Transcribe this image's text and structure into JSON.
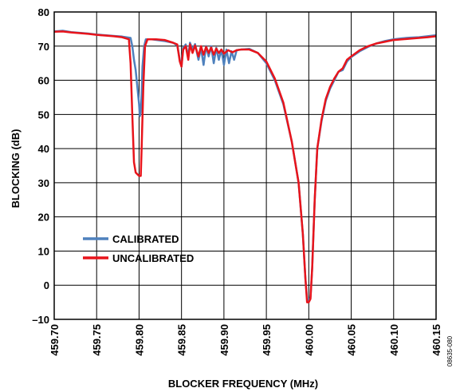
{
  "chart_data": {
    "type": "line",
    "title": "",
    "xlabel": "BLOCKER FREQUENCY (MHz)",
    "ylabel": "BLOCKING (dB)",
    "xlim": [
      459.7,
      460.15
    ],
    "ylim": [
      -10,
      80
    ],
    "x_ticks": [
      "459.70",
      "459.75",
      "459.80",
      "459.85",
      "459.90",
      "459.95",
      "460.00",
      "460.05",
      "460.10",
      "460.15"
    ],
    "y_ticks": [
      "–10",
      "0",
      "10",
      "20",
      "30",
      "40",
      "50",
      "60",
      "70",
      "80"
    ],
    "grid": true,
    "legend_position": "bottom-left",
    "figure_id": "08635-080",
    "series": [
      {
        "name": "CALIBRATED",
        "color": "#4f81bd",
        "points": [
          [
            459.7,
            74.3
          ],
          [
            459.71,
            74.5
          ],
          [
            459.72,
            74.1
          ],
          [
            459.73,
            73.9
          ],
          [
            459.74,
            73.7
          ],
          [
            459.75,
            73.4
          ],
          [
            459.76,
            73.2
          ],
          [
            459.77,
            73.0
          ],
          [
            459.78,
            72.8
          ],
          [
            459.79,
            72.4
          ],
          [
            459.792,
            70.0
          ],
          [
            459.794,
            66.0
          ],
          [
            459.796,
            63.0
          ],
          [
            459.798,
            58.0
          ],
          [
            459.8,
            53.0
          ],
          [
            459.801,
            49.5
          ],
          [
            459.802,
            51.0
          ],
          [
            459.803,
            56.0
          ],
          [
            459.804,
            64.0
          ],
          [
            459.806,
            70.0
          ],
          [
            459.808,
            72.0
          ],
          [
            459.815,
            72.0
          ],
          [
            459.83,
            71.5
          ],
          [
            459.84,
            71.0
          ],
          [
            459.845,
            70.2
          ],
          [
            459.848,
            66.0
          ],
          [
            459.85,
            64.0
          ],
          [
            459.852,
            69.5
          ],
          [
            459.855,
            70.5
          ],
          [
            459.858,
            67.0
          ],
          [
            459.86,
            71.0
          ],
          [
            459.863,
            69.0
          ],
          [
            459.866,
            70.6
          ],
          [
            459.87,
            66.0
          ],
          [
            459.873,
            69.5
          ],
          [
            459.876,
            64.5
          ],
          [
            459.879,
            70.0
          ],
          [
            459.882,
            67.0
          ],
          [
            459.885,
            70.0
          ],
          [
            459.888,
            65.0
          ],
          [
            459.891,
            69.5
          ],
          [
            459.894,
            66.0
          ],
          [
            459.897,
            69.0
          ],
          [
            459.9,
            64.5
          ],
          [
            459.903,
            69.0
          ],
          [
            459.906,
            65.0
          ],
          [
            459.909,
            68.5
          ],
          [
            459.912,
            66.0
          ],
          [
            459.915,
            68.8
          ],
          [
            459.92,
            69.0
          ],
          [
            459.93,
            69.2
          ],
          [
            459.94,
            68.0
          ],
          [
            459.95,
            65.0
          ],
          [
            459.96,
            60.0
          ],
          [
            459.97,
            53.0
          ],
          [
            459.98,
            42.0
          ],
          [
            459.988,
            30.0
          ],
          [
            459.993,
            15.0
          ],
          [
            459.996,
            2.0
          ],
          [
            459.998,
            -4.0
          ],
          [
            460.0,
            -4.5
          ],
          [
            460.002,
            -3.5
          ],
          [
            460.004,
            5.0
          ],
          [
            460.007,
            25.0
          ],
          [
            460.01,
            40.0
          ],
          [
            460.015,
            48.0
          ],
          [
            460.02,
            54.0
          ],
          [
            460.025,
            57.5
          ],
          [
            460.03,
            60.0
          ],
          [
            460.035,
            62.5
          ],
          [
            460.04,
            63.0
          ],
          [
            460.045,
            65.5
          ],
          [
            460.05,
            66.8
          ],
          [
            460.06,
            68.5
          ],
          [
            460.07,
            69.8
          ],
          [
            460.08,
            70.8
          ],
          [
            460.09,
            71.5
          ],
          [
            460.1,
            72.0
          ],
          [
            460.11,
            72.3
          ],
          [
            460.12,
            72.5
          ],
          [
            460.13,
            72.6
          ],
          [
            460.14,
            72.9
          ],
          [
            460.15,
            73.2
          ]
        ]
      },
      {
        "name": "UNCALIBRATED",
        "color": "#e8141b",
        "points": [
          [
            459.7,
            74.2
          ],
          [
            459.71,
            74.3
          ],
          [
            459.72,
            74.0
          ],
          [
            459.73,
            73.8
          ],
          [
            459.74,
            73.6
          ],
          [
            459.75,
            73.3
          ],
          [
            459.76,
            73.1
          ],
          [
            459.77,
            72.9
          ],
          [
            459.78,
            72.6
          ],
          [
            459.788,
            72.0
          ],
          [
            459.79,
            65.0
          ],
          [
            459.792,
            50.0
          ],
          [
            459.794,
            36.0
          ],
          [
            459.796,
            33.0
          ],
          [
            459.8,
            32.0
          ],
          [
            459.802,
            32.0
          ],
          [
            459.803,
            40.0
          ],
          [
            459.805,
            58.0
          ],
          [
            459.807,
            70.0
          ],
          [
            459.81,
            72.0
          ],
          [
            459.82,
            72.0
          ],
          [
            459.83,
            71.8
          ],
          [
            459.84,
            71.0
          ],
          [
            459.845,
            70.5
          ],
          [
            459.848,
            65.5
          ],
          [
            459.85,
            64.0
          ],
          [
            459.852,
            69.0
          ],
          [
            459.855,
            70.0
          ],
          [
            459.858,
            66.0
          ],
          [
            459.86,
            70.5
          ],
          [
            459.863,
            68.0
          ],
          [
            459.866,
            70.2
          ],
          [
            459.87,
            67.0
          ],
          [
            459.873,
            70.0
          ],
          [
            459.876,
            67.5
          ],
          [
            459.879,
            69.8
          ],
          [
            459.882,
            68.0
          ],
          [
            459.885,
            69.6
          ],
          [
            459.888,
            67.5
          ],
          [
            459.891,
            69.3
          ],
          [
            459.894,
            68.0
          ],
          [
            459.897,
            69.0
          ],
          [
            459.9,
            67.8
          ],
          [
            459.905,
            68.8
          ],
          [
            459.91,
            68.2
          ],
          [
            459.915,
            68.8
          ],
          [
            459.92,
            69.0
          ],
          [
            459.93,
            69.0
          ],
          [
            459.94,
            68.0
          ],
          [
            459.95,
            65.5
          ],
          [
            459.96,
            60.5
          ],
          [
            459.97,
            53.5
          ],
          [
            459.98,
            42.0
          ],
          [
            459.988,
            30.0
          ],
          [
            459.993,
            15.0
          ],
          [
            459.996,
            2.0
          ],
          [
            459.998,
            -5.0
          ],
          [
            460.0,
            -5.0
          ],
          [
            460.002,
            -4.0
          ],
          [
            460.004,
            5.0
          ],
          [
            460.007,
            25.0
          ],
          [
            460.01,
            40.0
          ],
          [
            460.015,
            48.5
          ],
          [
            460.02,
            54.5
          ],
          [
            460.025,
            58.0
          ],
          [
            460.03,
            60.5
          ],
          [
            460.035,
            62.5
          ],
          [
            460.04,
            63.5
          ],
          [
            460.045,
            66.0
          ],
          [
            460.05,
            67.0
          ],
          [
            460.06,
            68.8
          ],
          [
            460.07,
            70.0
          ],
          [
            460.08,
            70.8
          ],
          [
            460.09,
            71.3
          ],
          [
            460.1,
            71.8
          ],
          [
            460.11,
            72.0
          ],
          [
            460.12,
            72.2
          ],
          [
            460.13,
            72.4
          ],
          [
            460.14,
            72.6
          ],
          [
            460.15,
            72.9
          ]
        ]
      }
    ]
  }
}
